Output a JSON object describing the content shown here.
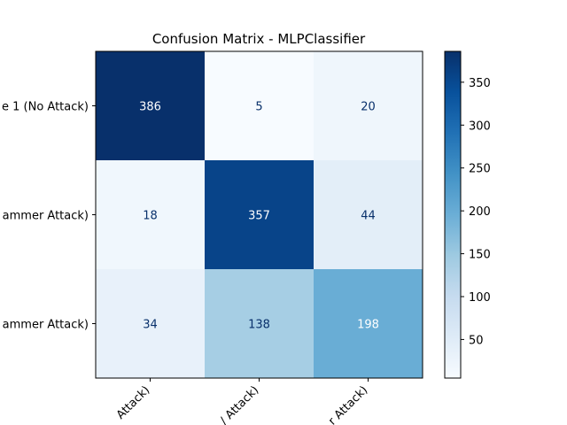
{
  "chart_data": {
    "type": "heatmap",
    "title": "Confusion Matrix - MLPClassifier",
    "y_tick_labels": [
      "e 1 (No Attack)",
      "ammer Attack)",
      "ammer Attack)"
    ],
    "x_tick_labels": [
      "Attack)",
      "/ Attack)",
      "r Attack)"
    ],
    "matrix": [
      [
        386,
        5,
        20
      ],
      [
        18,
        357,
        44
      ],
      [
        34,
        138,
        198
      ]
    ],
    "colormap": "Blues",
    "value_range": [
      5,
      386
    ],
    "colorbar_ticks": [
      50,
      100,
      150,
      200,
      250,
      300,
      350
    ],
    "colorbar_tick_labels": [
      "50",
      "100",
      "150",
      "200",
      "250",
      "300",
      "350"
    ],
    "grid": false
  }
}
